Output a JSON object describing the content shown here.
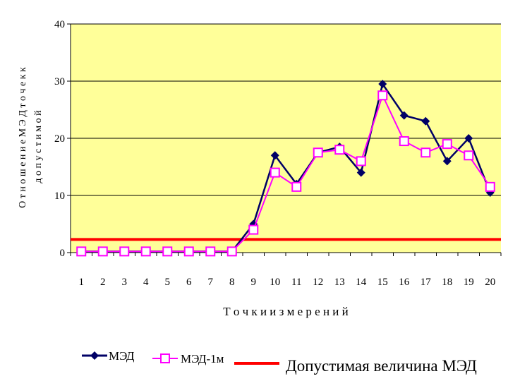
{
  "chart_data": {
    "type": "line",
    "title": "",
    "xlabel": "Т о ч к и     и з м е р е н и й",
    "ylabel_line1": "О т н о ш е н и е  М Э Д  т о ч е к  к",
    "ylabel_line2": "д о п у с т и м о й",
    "x": [
      1,
      2,
      3,
      4,
      5,
      6,
      7,
      8,
      9,
      10,
      11,
      12,
      13,
      14,
      15,
      16,
      17,
      18,
      19,
      20
    ],
    "ylim": [
      0,
      40
    ],
    "yticks": [
      0,
      10,
      20,
      30,
      40
    ],
    "grid": true,
    "legend_position": "bottom",
    "series": [
      {
        "name": "МЭД",
        "color": "#000066",
        "marker": "diamond",
        "values": [
          0.2,
          0.2,
          0.2,
          0.2,
          0.2,
          0.2,
          0.2,
          0.2,
          5,
          17,
          12,
          17.5,
          18.5,
          14,
          29.5,
          24,
          23,
          16,
          20,
          10.5
        ]
      },
      {
        "name": "МЭД-1м",
        "color": "#ff00ff",
        "marker": "square",
        "values": [
          0.2,
          0.2,
          0.2,
          0.2,
          0.2,
          0.2,
          0.2,
          0.2,
          4,
          14,
          11.5,
          17.5,
          18,
          16,
          27.5,
          19.5,
          17.5,
          19,
          17,
          11.5
        ]
      }
    ],
    "threshold": {
      "name": "Допустимая величина МЭД",
      "value": 2.3,
      "color": "#ff0000"
    },
    "plot_bg": "#ffff99"
  }
}
